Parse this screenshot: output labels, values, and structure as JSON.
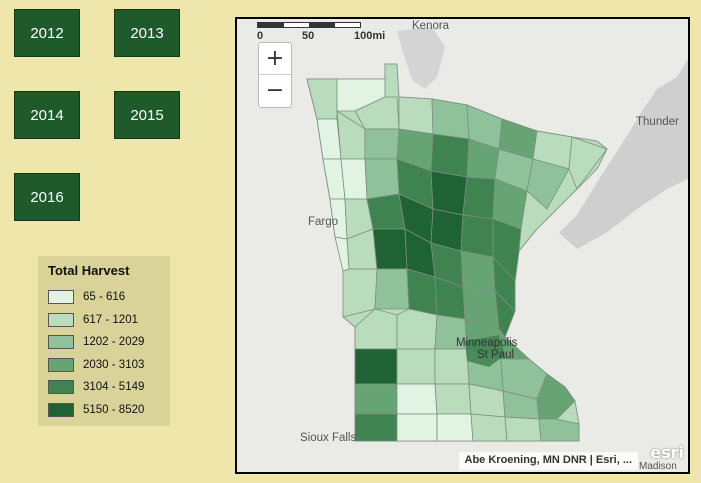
{
  "year_buttons": [
    "2012",
    "2013",
    "2014",
    "2015",
    "2016"
  ],
  "legend": {
    "title": "Total Harvest",
    "classes": [
      {
        "label": "65 - 616",
        "color": "#e1f3e2"
      },
      {
        "label": "617 - 1201",
        "color": "#b9dcbc"
      },
      {
        "label": "1202 - 2029",
        "color": "#8fc19a"
      },
      {
        "label": "2030 - 3103",
        "color": "#67a474"
      },
      {
        "label": "3104 - 5149",
        "color": "#3f8350"
      },
      {
        "label": "5150 - 8520",
        "color": "#1f6233"
      }
    ]
  },
  "map": {
    "zoom_in": "+",
    "zoom_out": "−",
    "scale": {
      "zero": "0",
      "mid": "50",
      "end": "100mi"
    },
    "places": {
      "kenora": "Kenora",
      "thunder": "Thunder",
      "fargo": "Fargo",
      "minneapolis": "Minneapolis",
      "st_paul": "St Paul",
      "sioux_falls": "Sioux Falls",
      "madison": "Madison"
    },
    "attribution": "Abe Kroening, MN DNR | Esri, ...",
    "logo": "esri"
  }
}
